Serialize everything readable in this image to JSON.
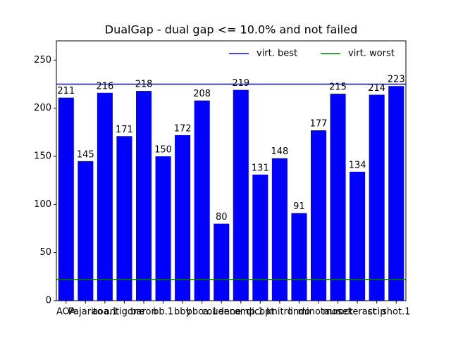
{
  "chart_data": {
    "type": "bar",
    "title": "DualGap - dual gap <= 10.0% and not failed",
    "categories": [
      "AOA",
      "Pajarito",
      "aoa.1",
      "antigone",
      "baron",
      "bb.1",
      "bby",
      "bbca.1",
      "couenne",
      "decomp.1",
      "dicopt",
      "knitro",
      "lindo",
      "minotaur",
      "mosek",
      "octeract",
      "scip",
      "shot.1"
    ],
    "values": [
      211,
      145,
      216,
      171,
      218,
      150,
      172,
      208,
      80,
      219,
      131,
      148,
      91,
      177,
      215,
      134,
      214,
      223
    ],
    "color": "#0000ff",
    "ylim": [
      0,
      270
    ],
    "yticks": [
      0,
      50,
      100,
      150,
      200,
      250
    ],
    "reference_lines": [
      {
        "name": "virt. best",
        "color": "#0000ff",
        "value": 225
      },
      {
        "name": "virt. worst",
        "color": "#008000",
        "value": 22
      }
    ],
    "legend": "upper right"
  }
}
